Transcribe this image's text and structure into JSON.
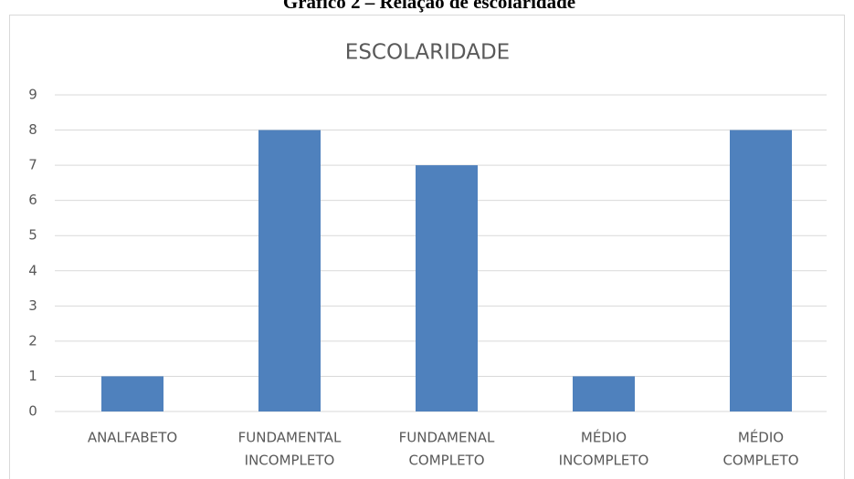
{
  "caption": "Gráfico 2 – Relação de escolaridade",
  "chart_data": {
    "type": "bar",
    "title": "ESCOLARIDADE",
    "categories": [
      [
        "ANALFABETO"
      ],
      [
        "FUNDAMENTAL",
        "INCOMPLETO"
      ],
      [
        "FUNDAMENAL",
        "COMPLETO"
      ],
      [
        "MÉDIO",
        "INCOMPLETO"
      ],
      [
        "MÉDIO",
        "COMPLETO"
      ]
    ],
    "values": [
      1,
      8,
      7,
      1,
      8
    ],
    "color": "#4f81bd",
    "ylim": [
      0,
      9
    ],
    "yticks": [
      0,
      1,
      2,
      3,
      4,
      5,
      6,
      7,
      8,
      9
    ],
    "grid": true
  }
}
